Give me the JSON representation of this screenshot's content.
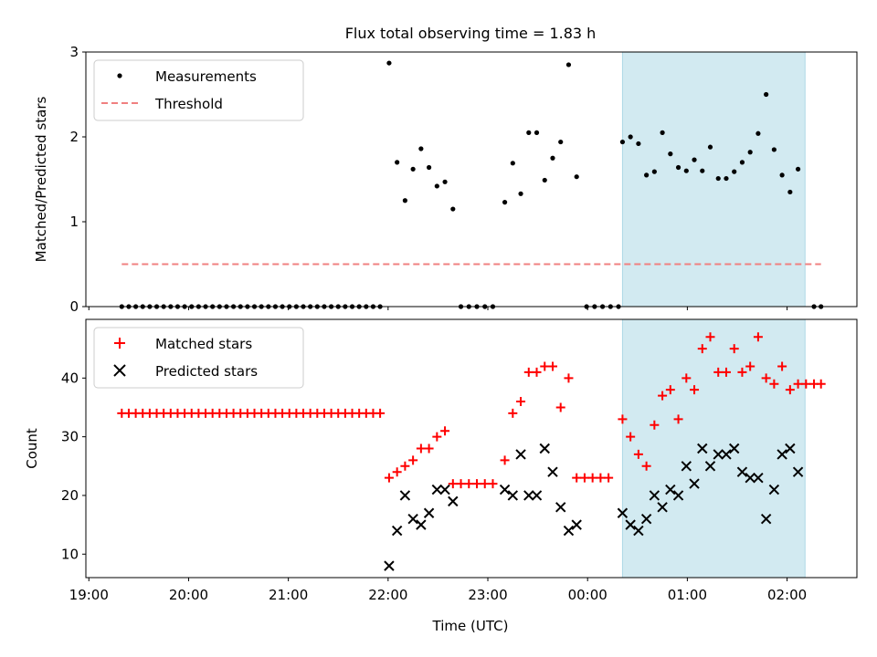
{
  "title": "Flux total observing time = 1.83 h",
  "colors": {
    "measurement": "#000000",
    "threshold": "#f08080",
    "matched": "#ff0000",
    "predicted": "#000000",
    "span_fill": "#add8e6"
  },
  "chart_data": [
    {
      "type": "scatter",
      "ylabel": "Matched/Predicted stars",
      "ylim": [
        0,
        3
      ],
      "yticks": [
        "0",
        "1",
        "2",
        "3"
      ],
      "xlim_hours": [
        -0.03,
        7.7
      ],
      "highlight_span_hours": [
        5.35,
        7.18
      ],
      "legend": {
        "position": "top-left",
        "entries": [
          "Measurements",
          "Threshold"
        ]
      },
      "series": [
        {
          "name": "Measurements",
          "marker": "dot",
          "points": [
            [
              0.33,
              0
            ],
            [
              0.4,
              0
            ],
            [
              0.47,
              0
            ],
            [
              0.54,
              0
            ],
            [
              0.61,
              0
            ],
            [
              0.68,
              0
            ],
            [
              0.75,
              0
            ],
            [
              0.82,
              0
            ],
            [
              0.89,
              0
            ],
            [
              0.96,
              0
            ],
            [
              1.03,
              0
            ],
            [
              1.1,
              0
            ],
            [
              1.17,
              0
            ],
            [
              1.24,
              0
            ],
            [
              1.31,
              0
            ],
            [
              1.38,
              0
            ],
            [
              1.45,
              0
            ],
            [
              1.52,
              0
            ],
            [
              1.59,
              0
            ],
            [
              1.66,
              0
            ],
            [
              1.73,
              0
            ],
            [
              1.8,
              0
            ],
            [
              1.87,
              0
            ],
            [
              1.94,
              0
            ],
            [
              2.01,
              0
            ],
            [
              2.08,
              0
            ],
            [
              2.15,
              0
            ],
            [
              2.22,
              0
            ],
            [
              2.29,
              0
            ],
            [
              2.36,
              0
            ],
            [
              2.43,
              0
            ],
            [
              2.5,
              0
            ],
            [
              2.57,
              0
            ],
            [
              2.64,
              0
            ],
            [
              2.71,
              0
            ],
            [
              2.78,
              0
            ],
            [
              2.85,
              0
            ],
            [
              2.92,
              0
            ],
            [
              3.01,
              2.87
            ],
            [
              3.09,
              1.7
            ],
            [
              3.17,
              1.25
            ],
            [
              3.25,
              1.62
            ],
            [
              3.33,
              1.86
            ],
            [
              3.41,
              1.64
            ],
            [
              3.49,
              1.42
            ],
            [
              3.57,
              1.47
            ],
            [
              3.65,
              1.15
            ],
            [
              3.73,
              0
            ],
            [
              3.81,
              0
            ],
            [
              3.89,
              0
            ],
            [
              3.97,
              0
            ],
            [
              4.05,
              0
            ],
            [
              4.17,
              1.23
            ],
            [
              4.25,
              1.69
            ],
            [
              4.33,
              1.33
            ],
            [
              4.41,
              2.05
            ],
            [
              4.49,
              2.05
            ],
            [
              4.57,
              1.49
            ],
            [
              4.65,
              1.75
            ],
            [
              4.73,
              1.94
            ],
            [
              4.81,
              2.85
            ],
            [
              4.89,
              1.53
            ],
            [
              4.99,
              0
            ],
            [
              5.07,
              0
            ],
            [
              5.15,
              0
            ],
            [
              5.23,
              0
            ],
            [
              5.31,
              0
            ],
            [
              5.35,
              1.94
            ],
            [
              5.43,
              2.0
            ],
            [
              5.51,
              1.92
            ],
            [
              5.59,
              1.55
            ],
            [
              5.67,
              1.59
            ],
            [
              5.75,
              2.05
            ],
            [
              5.83,
              1.8
            ],
            [
              5.91,
              1.64
            ],
            [
              5.99,
              1.6
            ],
            [
              6.07,
              1.73
            ],
            [
              6.15,
              1.6
            ],
            [
              6.23,
              1.88
            ],
            [
              6.31,
              1.51
            ],
            [
              6.39,
              1.51
            ],
            [
              6.47,
              1.59
            ],
            [
              6.55,
              1.7
            ],
            [
              6.63,
              1.82
            ],
            [
              6.71,
              2.04
            ],
            [
              6.79,
              2.5
            ],
            [
              6.87,
              1.85
            ],
            [
              6.95,
              1.55
            ],
            [
              7.03,
              1.35
            ],
            [
              7.11,
              1.62
            ],
            [
              7.27,
              0
            ],
            [
              7.34,
              0
            ]
          ]
        },
        {
          "name": "Threshold",
          "marker": "dashed-line",
          "points": [
            [
              0.33,
              0.5
            ],
            [
              7.34,
              0.5
            ]
          ]
        }
      ]
    },
    {
      "type": "scatter",
      "xlabel": "Time (UTC)",
      "ylabel": "Count",
      "ylim": [
        6,
        50
      ],
      "yticks": [
        "10",
        "20",
        "30",
        "40"
      ],
      "xlim_hours": [
        -0.03,
        7.7
      ],
      "xticks": [
        "19:00",
        "20:00",
        "21:00",
        "22:00",
        "23:00",
        "00:00",
        "01:00",
        "02:00"
      ],
      "highlight_span_hours": [
        5.35,
        7.18
      ],
      "legend": {
        "position": "top-left",
        "entries": [
          "Matched stars",
          "Predicted stars"
        ]
      },
      "series": [
        {
          "name": "Matched stars",
          "marker": "plus",
          "points": [
            [
              0.33,
              34
            ],
            [
              0.4,
              34
            ],
            [
              0.47,
              34
            ],
            [
              0.54,
              34
            ],
            [
              0.61,
              34
            ],
            [
              0.68,
              34
            ],
            [
              0.75,
              34
            ],
            [
              0.82,
              34
            ],
            [
              0.89,
              34
            ],
            [
              0.96,
              34
            ],
            [
              1.03,
              34
            ],
            [
              1.1,
              34
            ],
            [
              1.17,
              34
            ],
            [
              1.24,
              34
            ],
            [
              1.31,
              34
            ],
            [
              1.38,
              34
            ],
            [
              1.45,
              34
            ],
            [
              1.52,
              34
            ],
            [
              1.59,
              34
            ],
            [
              1.66,
              34
            ],
            [
              1.73,
              34
            ],
            [
              1.8,
              34
            ],
            [
              1.87,
              34
            ],
            [
              1.94,
              34
            ],
            [
              2.01,
              34
            ],
            [
              2.08,
              34
            ],
            [
              2.15,
              34
            ],
            [
              2.22,
              34
            ],
            [
              2.29,
              34
            ],
            [
              2.36,
              34
            ],
            [
              2.43,
              34
            ],
            [
              2.5,
              34
            ],
            [
              2.57,
              34
            ],
            [
              2.64,
              34
            ],
            [
              2.71,
              34
            ],
            [
              2.78,
              34
            ],
            [
              2.85,
              34
            ],
            [
              2.92,
              34
            ],
            [
              3.01,
              23
            ],
            [
              3.09,
              24
            ],
            [
              3.17,
              25
            ],
            [
              3.25,
              26
            ],
            [
              3.33,
              28
            ],
            [
              3.41,
              28
            ],
            [
              3.49,
              30
            ],
            [
              3.57,
              31
            ],
            [
              3.65,
              22
            ],
            [
              3.73,
              22
            ],
            [
              3.81,
              22
            ],
            [
              3.89,
              22
            ],
            [
              3.97,
              22
            ],
            [
              4.05,
              22
            ],
            [
              4.17,
              26
            ],
            [
              4.25,
              34
            ],
            [
              4.33,
              36
            ],
            [
              4.41,
              41
            ],
            [
              4.49,
              41
            ],
            [
              4.57,
              42
            ],
            [
              4.65,
              42
            ],
            [
              4.73,
              35
            ],
            [
              4.81,
              40
            ],
            [
              4.89,
              23
            ],
            [
              4.97,
              23
            ],
            [
              5.05,
              23
            ],
            [
              5.13,
              23
            ],
            [
              5.21,
              23
            ],
            [
              5.35,
              33
            ],
            [
              5.43,
              30
            ],
            [
              5.51,
              27
            ],
            [
              5.59,
              25
            ],
            [
              5.67,
              32
            ],
            [
              5.75,
              37
            ],
            [
              5.83,
              38
            ],
            [
              5.91,
              33
            ],
            [
              5.99,
              40
            ],
            [
              6.07,
              38
            ],
            [
              6.15,
              45
            ],
            [
              6.23,
              47
            ],
            [
              6.31,
              41
            ],
            [
              6.39,
              41
            ],
            [
              6.47,
              45
            ],
            [
              6.55,
              41
            ],
            [
              6.63,
              42
            ],
            [
              6.71,
              47
            ],
            [
              6.79,
              40
            ],
            [
              6.87,
              39
            ],
            [
              6.95,
              42
            ],
            [
              7.03,
              38
            ],
            [
              7.11,
              39
            ],
            [
              7.19,
              39
            ],
            [
              7.27,
              39
            ],
            [
              7.34,
              39
            ]
          ]
        },
        {
          "name": "Predicted stars",
          "marker": "x",
          "points": [
            [
              3.01,
              8
            ],
            [
              3.09,
              14
            ],
            [
              3.17,
              20
            ],
            [
              3.25,
              16
            ],
            [
              3.33,
              15
            ],
            [
              3.41,
              17
            ],
            [
              3.49,
              21
            ],
            [
              3.57,
              21
            ],
            [
              3.65,
              19
            ],
            [
              4.17,
              21
            ],
            [
              4.25,
              20
            ],
            [
              4.33,
              27
            ],
            [
              4.41,
              20
            ],
            [
              4.49,
              20
            ],
            [
              4.57,
              28
            ],
            [
              4.65,
              24
            ],
            [
              4.73,
              18
            ],
            [
              4.81,
              14
            ],
            [
              4.89,
              15
            ],
            [
              5.35,
              17
            ],
            [
              5.43,
              15
            ],
            [
              5.51,
              14
            ],
            [
              5.59,
              16
            ],
            [
              5.67,
              20
            ],
            [
              5.75,
              18
            ],
            [
              5.83,
              21
            ],
            [
              5.91,
              20
            ],
            [
              5.99,
              25
            ],
            [
              6.07,
              22
            ],
            [
              6.15,
              28
            ],
            [
              6.23,
              25
            ],
            [
              6.31,
              27
            ],
            [
              6.39,
              27
            ],
            [
              6.47,
              28
            ],
            [
              6.55,
              24
            ],
            [
              6.63,
              23
            ],
            [
              6.71,
              23
            ],
            [
              6.79,
              16
            ],
            [
              6.87,
              21
            ],
            [
              6.95,
              27
            ],
            [
              7.03,
              28
            ],
            [
              7.11,
              24
            ]
          ]
        }
      ]
    }
  ]
}
